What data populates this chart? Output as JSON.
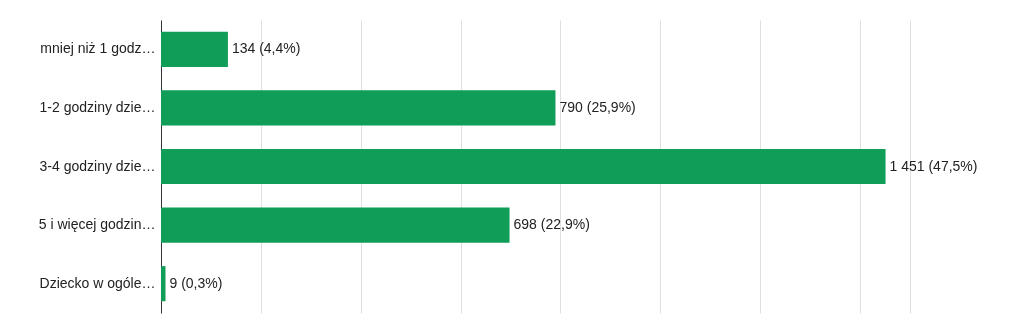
{
  "chart_data": {
    "type": "bar",
    "orientation": "horizontal",
    "categories": [
      "mniej niż 1 godz…",
      "1-2 godziny dzie…",
      "3-4 godziny dzie…",
      "5 i więcej godzin…",
      "Dziecko w ogóle…"
    ],
    "values": [
      134,
      790,
      1451,
      698,
      9
    ],
    "value_labels": [
      "134 (4,4%)",
      "790 (25,9%)",
      "1 451 (47,5%)",
      "698 (22,9%)",
      "9 (0,3%)"
    ],
    "color": "#0f9d58",
    "xlim": [
      0,
      1500
    ],
    "xticks": [
      {
        "value": 0,
        "label": null
      },
      {
        "value": 200,
        "label": null
      },
      {
        "value": 400,
        "label": null
      },
      {
        "value": 600,
        "label": null
      },
      {
        "value": 800,
        "label": null
      },
      {
        "value": 1000,
        "label": null
      },
      {
        "value": 1200,
        "label": null
      },
      {
        "value": 1400,
        "label": null
      },
      {
        "value": 1500,
        "label": null
      }
    ],
    "grid": "x",
    "tick_labels": "y"
  }
}
